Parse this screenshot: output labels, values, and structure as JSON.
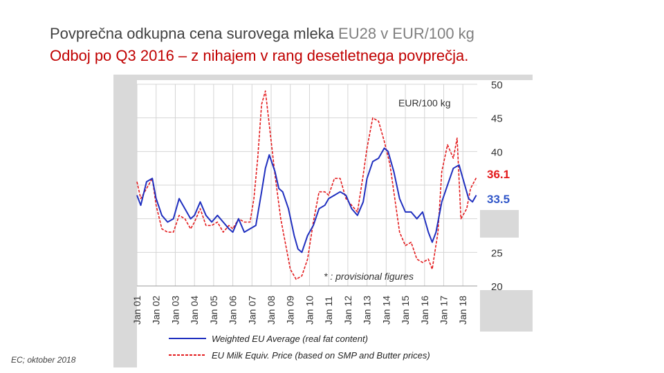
{
  "title": {
    "main": "Povprečna odkupna cena surovega mleka",
    "suffix": " EU28  v EUR/100 kg",
    "subtitle": "Odboj po Q3 2016 – z nihajem v rang desetletnega povprečja."
  },
  "source_note": "EC; oktober 2018",
  "chart_data": {
    "type": "line",
    "unit_label": "EUR/100 kg",
    "note": "* : provisional figures",
    "x_ticks": [
      "Jan 01",
      "Jan 02",
      "Jan 03",
      "Jan 04",
      "Jan 05",
      "Jan 06",
      "Jan 07",
      "Jan 08",
      "Jan 09",
      "Jan 10",
      "Jan 11",
      "Jan 12",
      "Jan 13",
      "Jan 14",
      "Jan 15",
      "Jan 16",
      "Jan 17",
      "Jan 18"
    ],
    "y_ticks": [
      20,
      25,
      30,
      35,
      40,
      45,
      50
    ],
    "ylim": [
      20,
      50
    ],
    "xlim": [
      2001.0,
      2018.75
    ],
    "grid": true,
    "end_labels": [
      {
        "text": "36.1",
        "color": "#e31a1c",
        "value": 36.1
      },
      {
        "text": "33.5",
        "color": "#2f55c8",
        "value": 33.5
      }
    ],
    "series": [
      {
        "name": "Weighted EU Average (real fat content)",
        "color": "#1f2fbf",
        "style": "solid",
        "x": [
          2001.0,
          2001.2,
          2001.5,
          2001.8,
          2002.0,
          2002.3,
          2002.6,
          2002.9,
          2003.2,
          2003.5,
          2003.8,
          2004.0,
          2004.3,
          2004.6,
          2004.9,
          2005.2,
          2005.5,
          2005.8,
          2006.0,
          2006.3,
          2006.6,
          2006.9,
          2007.2,
          2007.5,
          2007.7,
          2007.9,
          2008.2,
          2008.4,
          2008.6,
          2008.9,
          2009.2,
          2009.4,
          2009.6,
          2009.9,
          2010.2,
          2010.5,
          2010.8,
          2011.0,
          2011.3,
          2011.6,
          2011.9,
          2012.2,
          2012.5,
          2012.8,
          2013.0,
          2013.3,
          2013.6,
          2013.9,
          2014.1,
          2014.4,
          2014.7,
          2015.0,
          2015.3,
          2015.6,
          2015.9,
          2016.2,
          2016.4,
          2016.6,
          2016.9,
          2017.2,
          2017.5,
          2017.8,
          2018.0,
          2018.3,
          2018.5,
          2018.7
        ],
        "values": [
          33.5,
          32.0,
          35.5,
          36.0,
          33.0,
          30.5,
          29.5,
          30.0,
          33.0,
          31.5,
          30.0,
          30.5,
          32.5,
          30.5,
          29.5,
          30.5,
          29.5,
          28.5,
          28.0,
          30.0,
          28.0,
          28.5,
          29.0,
          34.0,
          37.5,
          39.5,
          37.0,
          34.5,
          34.0,
          31.5,
          27.5,
          25.5,
          25.0,
          27.5,
          29.0,
          31.5,
          32.0,
          33.0,
          33.5,
          34.0,
          33.5,
          31.5,
          30.5,
          32.5,
          36.0,
          38.5,
          39.0,
          40.5,
          40.0,
          37.0,
          33.0,
          31.0,
          31.0,
          30.0,
          31.0,
          28.0,
          26.5,
          28.0,
          32.5,
          35.0,
          37.5,
          38.0,
          36.0,
          33.0,
          32.5,
          33.5
        ]
      },
      {
        "name": "EU Milk Equiv. Price (based on SMP and Butter prices)",
        "color": "#e31a1c",
        "style": "dashed",
        "x": [
          2001.0,
          2001.2,
          2001.5,
          2001.8,
          2002.0,
          2002.3,
          2002.6,
          2002.9,
          2003.2,
          2003.5,
          2003.8,
          2004.0,
          2004.3,
          2004.6,
          2004.9,
          2005.2,
          2005.5,
          2005.8,
          2006.0,
          2006.3,
          2006.6,
          2006.9,
          2007.1,
          2007.3,
          2007.5,
          2007.7,
          2007.9,
          2008.2,
          2008.5,
          2008.8,
          2009.0,
          2009.3,
          2009.6,
          2009.9,
          2010.2,
          2010.5,
          2010.8,
          2011.0,
          2011.3,
          2011.6,
          2011.9,
          2012.2,
          2012.5,
          2012.8,
          2013.0,
          2013.3,
          2013.6,
          2013.9,
          2014.2,
          2014.4,
          2014.7,
          2015.0,
          2015.3,
          2015.6,
          2015.9,
          2016.2,
          2016.4,
          2016.7,
          2016.9,
          2017.2,
          2017.5,
          2017.7,
          2017.9,
          2018.2,
          2018.4,
          2018.7
        ],
        "values": [
          35.5,
          33.0,
          34.5,
          36.0,
          32.0,
          28.5,
          28.0,
          28.0,
          30.5,
          30.0,
          28.5,
          29.5,
          31.5,
          29.0,
          29.0,
          29.5,
          28.0,
          29.0,
          28.5,
          30.0,
          29.5,
          29.5,
          33.0,
          39.0,
          47.0,
          49.0,
          44.0,
          36.5,
          30.0,
          25.5,
          22.5,
          21.0,
          21.5,
          24.0,
          29.5,
          34.0,
          34.0,
          33.5,
          36.0,
          36.0,
          33.0,
          32.0,
          31.0,
          36.5,
          40.5,
          45.0,
          44.5,
          41.5,
          38.0,
          34.0,
          28.0,
          26.0,
          26.5,
          24.0,
          23.5,
          24.0,
          22.5,
          28.0,
          37.0,
          41.0,
          39.0,
          42.0,
          30.0,
          31.5,
          34.5,
          36.1
        ]
      }
    ]
  }
}
